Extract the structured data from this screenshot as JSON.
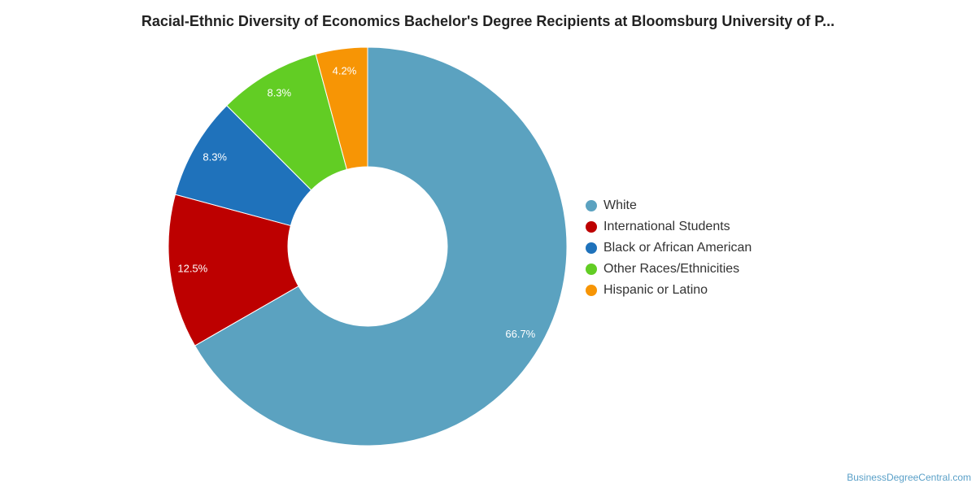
{
  "chart_data": {
    "type": "pie",
    "title": "Racial-Ethnic Diversity of Economics Bachelor's Degree Recipients at Bloomsburg University of P...",
    "categories": [
      "White",
      "International Students",
      "Black or African American",
      "Other Races/Ethnicities",
      "Hispanic or Latino"
    ],
    "values": [
      66.7,
      12.5,
      8.3,
      8.3,
      4.2
    ],
    "labels": [
      "66.7%",
      "12.5%",
      "8.3%",
      "8.3%",
      "4.2%"
    ],
    "colors": [
      "#5ba2c0",
      "#bd0000",
      "#1f72bb",
      "#62cd24",
      "#f79505"
    ],
    "legend_position": "right",
    "donut": true
  },
  "footer": {
    "credit": "BusinessDegreeCentral.com"
  }
}
